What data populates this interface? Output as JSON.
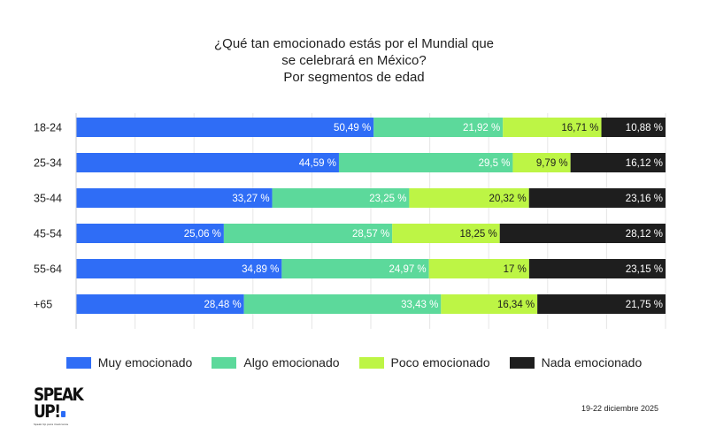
{
  "chart_data": {
    "type": "bar",
    "orientation": "horizontal",
    "stacked": true,
    "title": "¿Qué tan emocionado estás por el Mundial que se celebrará en México? Por segmentos de edad",
    "title_lines": [
      "¿Qué tan emocionado estás por el Mundial que",
      "se celebrará en México?",
      "Por segmentos de edad"
    ],
    "categories": [
      "18-24",
      "25-34",
      "35-44",
      "45-54",
      "55-64",
      "+65"
    ],
    "series": [
      {
        "name": "Muy emocionado",
        "color": "#2f6df6",
        "label_color": "#ffffff",
        "values": [
          50.49,
          44.59,
          33.27,
          25.06,
          34.89,
          28.48
        ],
        "labels": [
          "50,49 %",
          "44,59 %",
          "33,27 %",
          "25,06 %",
          "34,89 %",
          "28,48 %"
        ]
      },
      {
        "name": "Algo emocionado",
        "color": "#5cd99b",
        "label_color": "#ffffff",
        "values": [
          21.92,
          29.5,
          23.25,
          28.57,
          24.97,
          33.43
        ],
        "labels": [
          "21,92 %",
          "29,5 %",
          "23,25 %",
          "28,57 %",
          "24,97 %",
          "33,43 %"
        ]
      },
      {
        "name": "Poco emocionado",
        "color": "#bdf545",
        "label_color": "#1e1e1e",
        "values": [
          16.71,
          9.79,
          20.32,
          18.25,
          17,
          16.34
        ],
        "labels": [
          "16,71 %",
          "9,79 %",
          "20,32 %",
          "18,25 %",
          "17 %",
          "16,34 %"
        ]
      },
      {
        "name": "Nada emocionado",
        "color": "#1e1e1e",
        "label_color": "#ffffff",
        "values": [
          10.88,
          16.12,
          23.16,
          28.12,
          23.15,
          21.75
        ],
        "labels": [
          "10,88 %",
          "16,12 %",
          "23,16 %",
          "28,12 %",
          "23,15 %",
          "21,75 %"
        ]
      }
    ],
    "xlim": [
      0,
      100
    ],
    "legend_position": "bottom",
    "grid": true
  },
  "logo": {
    "line1": "SPEAK",
    "line2": "UP!",
    "tagline": "Speak Up para mexicanos"
  },
  "footer": {
    "date": "19-22 diciembre 2025"
  }
}
